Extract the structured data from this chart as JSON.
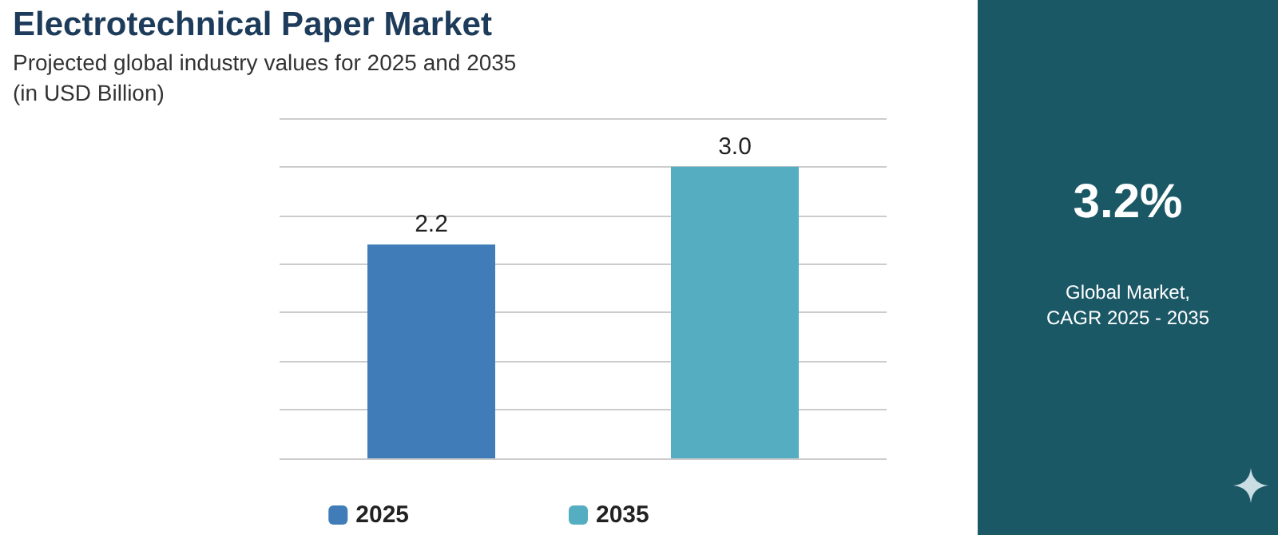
{
  "chart_data": {
    "type": "bar",
    "title": "Electrotechnical Paper Market",
    "subtitle": "Projected global industry values for 2025 and 2035\n(in USD Billion)",
    "categories": [
      null,
      null
    ],
    "series": [
      {
        "name": "2025",
        "color": "#3f7cb8",
        "values": [
          2.2,
          null
        ],
        "value_labels": [
          "2.2",
          null
        ]
      },
      {
        "name": "2035",
        "color": "#55adc2",
        "values": [
          null,
          3.0
        ],
        "value_labels": [
          null,
          "3.0"
        ]
      }
    ],
    "stacked": true,
    "ylim": [
      0,
      3.5
    ],
    "yticks": [
      {
        "value": 0,
        "label": null
      },
      {
        "value": 0.5,
        "label": null
      },
      {
        "value": 1,
        "label": null
      },
      {
        "value": 1.5,
        "label": null
      },
      {
        "value": 2,
        "label": null
      },
      {
        "value": 2.5,
        "label": null
      },
      {
        "value": 3,
        "label": null
      },
      {
        "value": 3.5,
        "label": null
      }
    ],
    "grid": "y",
    "legend": "bottom",
    "annotations": [
      "3.2%",
      "Global Market,\nCAGR 2025 - 2035"
    ]
  }
}
